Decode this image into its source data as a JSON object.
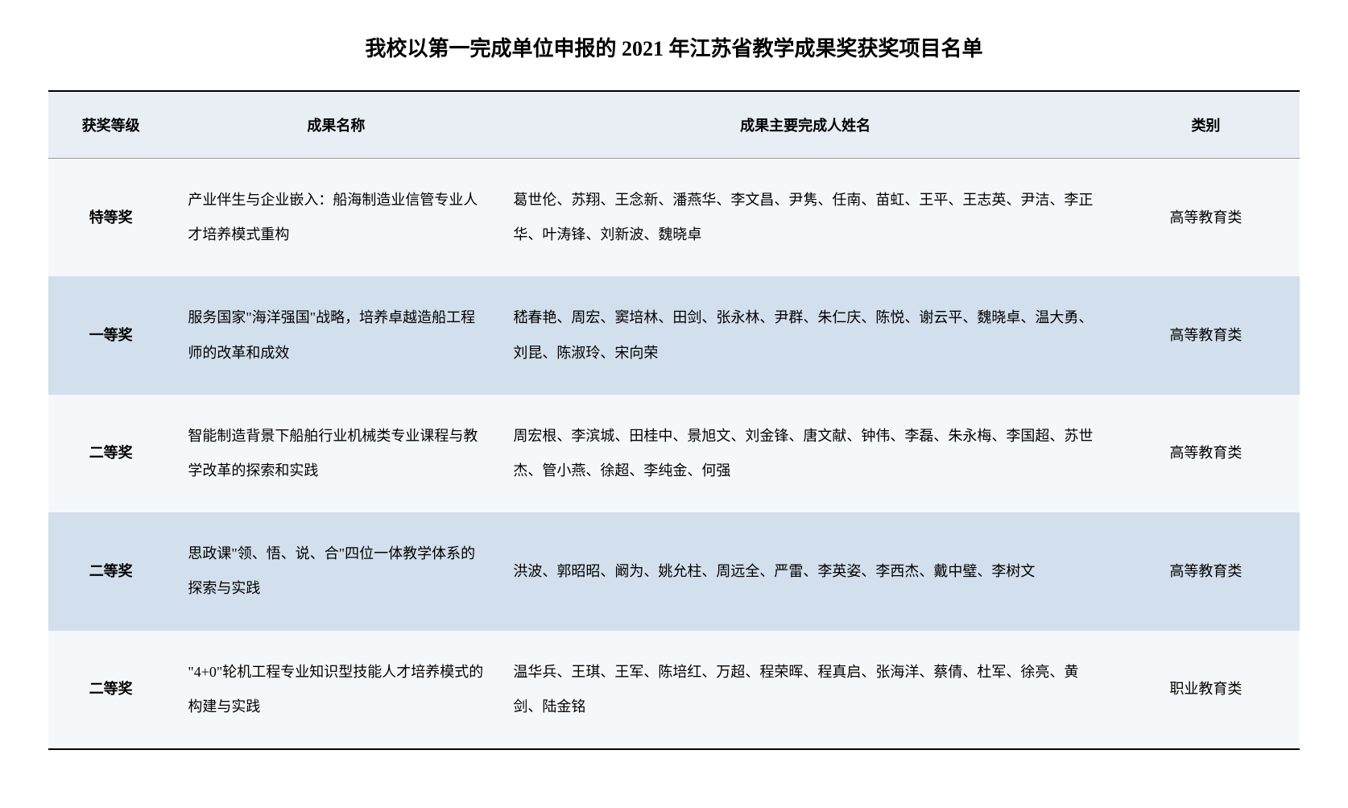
{
  "title": "我校以第一完成单位申报的 2021 年江苏省教学成果奖获奖项目名单",
  "table": {
    "columns": [
      "获奖等级",
      "成果名称",
      "成果主要完成人姓名",
      "类别"
    ],
    "header_bg": "#e8eef4",
    "row_light_bg": "#f5f8fb",
    "row_dark_bg": "#d2dfec",
    "border_color": "#000000",
    "text_color": "#000000",
    "title_fontsize": 26,
    "header_fontsize": 18,
    "cell_fontsize": 18,
    "line_height": 2.4,
    "rows": [
      {
        "level": "特等奖",
        "name": "产业伴生与企业嵌入：船海制造业信管专业人才培养模式重构",
        "people": "葛世伦、苏翔、王念新、潘燕华、李文昌、尹隽、任南、苗虹、王平、王志英、尹洁、李正华、叶涛锋、刘新波、魏晓卓",
        "category": "高等教育类",
        "shade": "light"
      },
      {
        "level": "一等奖",
        "name": "服务国家\"海洋强国\"战略，培养卓越造船工程师的改革和成效",
        "people": "嵇春艳、周宏、窦培林、田剑、张永林、尹群、朱仁庆、陈悦、谢云平、魏晓卓、温大勇、刘昆、陈淑玲、宋向荣",
        "category": "高等教育类",
        "shade": "dark"
      },
      {
        "level": "二等奖",
        "name": "智能制造背景下船舶行业机械类专业课程与教学改革的探索和实践",
        "people": "周宏根、李滨城、田桂中、景旭文、刘金锋、唐文献、钟伟、李磊、朱永梅、李国超、苏世杰、管小燕、徐超、李纯金、何强",
        "category": "高等教育类",
        "shade": "light"
      },
      {
        "level": "二等奖",
        "name": "思政课\"领、悟、说、合\"四位一体教学体系的探索与实践",
        "people": "洪波、郭昭昭、阚为、姚允柱、周远全、严雷、李英姿、李西杰、戴中璧、李树文",
        "category": "高等教育类",
        "shade": "dark"
      },
      {
        "level": "二等奖",
        "name": "\"4+0\"轮机工程专业知识型技能人才培养模式的构建与实践",
        "people": "温华兵、王琪、王军、陈培红、万超、程荣晖、程真启、张海洋、蔡倩、杜军、徐亮、黄剑、陆金铭",
        "category": "职业教育类",
        "shade": "light"
      }
    ]
  }
}
